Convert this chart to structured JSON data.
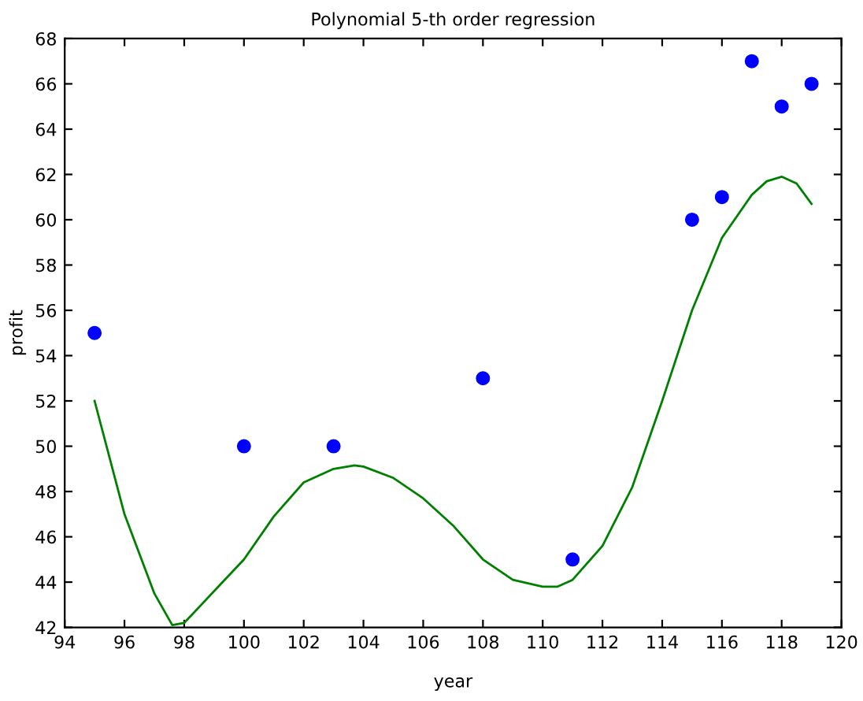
{
  "chart_data": {
    "type": "scatter",
    "title": "Polynomial 5-th order regression",
    "xlabel": "year",
    "ylabel": "profit",
    "xlim": [
      94,
      120
    ],
    "xticks": [
      94,
      96,
      98,
      100,
      102,
      104,
      106,
      108,
      110,
      112,
      114,
      116,
      118,
      120
    ],
    "ylim": [
      42,
      68
    ],
    "yticks": [
      42,
      44,
      46,
      48,
      50,
      52,
      54,
      56,
      58,
      60,
      62,
      64,
      66,
      68
    ],
    "grid": false,
    "legend": false,
    "series": [
      {
        "type": "scatter",
        "marker": "circle",
        "color": "#0000ff",
        "x": [
          95,
          100,
          103,
          108,
          111,
          115,
          116,
          117,
          118,
          119
        ],
        "values": [
          55,
          50,
          50,
          53,
          45,
          60,
          61,
          67,
          65,
          66
        ]
      },
      {
        "type": "line",
        "marker": "none",
        "line_style": "solid",
        "color": "#008000",
        "x": [
          95,
          96,
          97,
          97.6,
          98,
          99,
          100,
          101,
          102,
          103,
          103.7,
          104,
          105,
          106,
          107,
          108,
          109,
          110,
          110.5,
          111,
          112,
          113,
          114,
          115,
          116,
          117,
          117.5,
          118,
          118.5,
          119
        ],
        "values": [
          52,
          47,
          43.5,
          42.1,
          42.2,
          43.6,
          45,
          46.9,
          48.4,
          49,
          49.15,
          49.1,
          48.6,
          47.7,
          46.5,
          45,
          44.1,
          43.8,
          43.8,
          44.1,
          45.6,
          48.2,
          52,
          56,
          59.2,
          61.1,
          61.7,
          61.9,
          61.6,
          60.7
        ]
      }
    ]
  }
}
